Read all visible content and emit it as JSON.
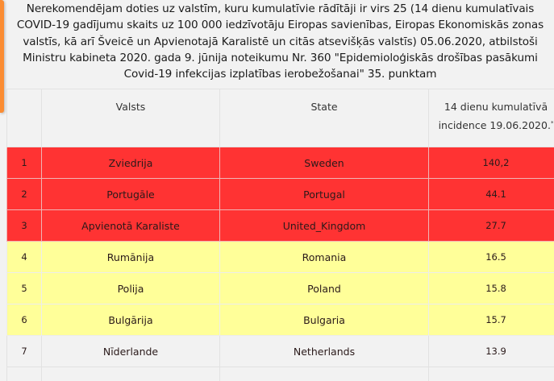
{
  "colors": {
    "accent": "#fb8c32",
    "red_row": "#ff3333",
    "yellow_row": "#ffff99",
    "gray_row": "#f2f2f2"
  },
  "intro": {
    "text": "Nerekomendējam doties uz valstīm, kuru kumulatīvie rādītāji ir virs 25 (14 dienu kumulatīvais COVID-19 gadījumu skaits uz 100 000 iedzīvotāju Eiropas savienības, Eiropas Ekonomiskās zonas valstīs, kā arī Šveicē un Apvienotajā Karalistē un citās atsevišķās valstīs) 05.06.2020, atbilstoši Ministru kabineta 2020. gada 9. jūnija noteikumu Nr. 360 \"Epidemioloģiskās drošības pasākumi Covid-19 infekcijas izplatības ierobežošanai\" 35. punktam"
  },
  "table": {
    "headers": {
      "num": "",
      "country_lv": "Valsts",
      "country_en": "State",
      "incidence": "14 dienu kumulatīvā incidence 19.06.2020.",
      "incidence_mark": "*"
    },
    "rows": [
      {
        "num": "1",
        "country_lv": "Zviedrija",
        "country_en": "Sweden",
        "incidence": "140,2",
        "level": "red"
      },
      {
        "num": "2",
        "country_lv": "Portugāle",
        "country_en": "Portugal",
        "incidence": "44.1",
        "level": "red"
      },
      {
        "num": "3",
        "country_lv": "Apvienotā Karaliste",
        "country_en": "United_Kingdom",
        "incidence": "27.7",
        "level": "red"
      },
      {
        "num": "4",
        "country_lv": "Rumānija",
        "country_en": "Romania",
        "incidence": "16.5",
        "level": "yellow"
      },
      {
        "num": "5",
        "country_lv": "Polija",
        "country_en": "Poland",
        "incidence": "15.8",
        "level": "yellow"
      },
      {
        "num": "6",
        "country_lv": "Bulgārija",
        "country_en": "Bulgaria",
        "incidence": "15.7",
        "level": "yellow"
      },
      {
        "num": "7",
        "country_lv": "Nīderlande",
        "country_en": "Netherlands",
        "incidence": "13.9",
        "level": "gray"
      }
    ]
  }
}
